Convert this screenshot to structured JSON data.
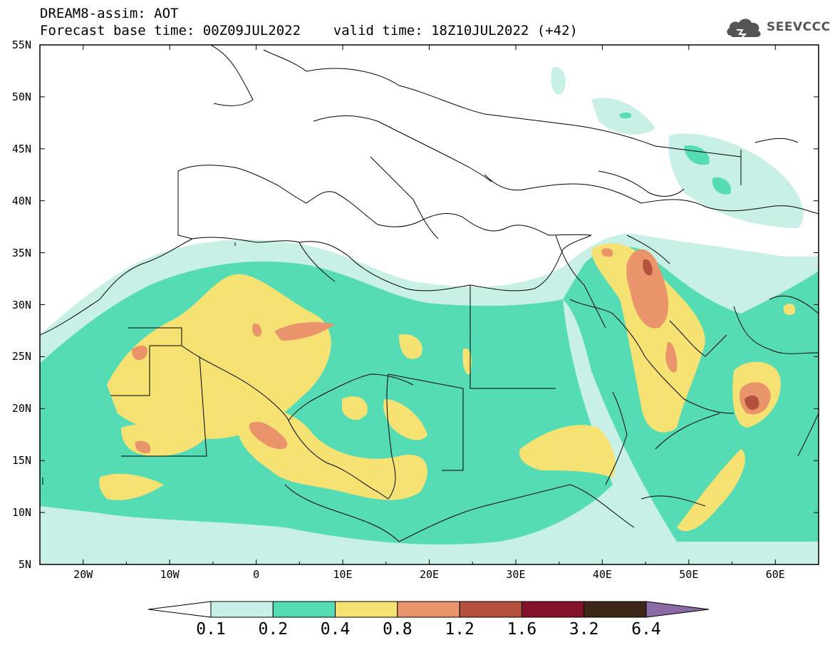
{
  "title": {
    "line1": "DREAM8-assim: AOT",
    "line2": "Forecast base time: 00Z09JUL2022    valid time: 18Z10JUL2022 (+42)"
  },
  "logo": {
    "text": "SEEVCCC",
    "icon": "cloud-logo-icon"
  },
  "map": {
    "lon_range": [
      -25,
      65
    ],
    "lat_range": [
      5,
      55
    ],
    "lat_ticks": [
      "55N",
      "50N",
      "45N",
      "40N",
      "35N",
      "30N",
      "25N",
      "20N",
      "15N",
      "10N",
      "5N"
    ],
    "lon_ticks": [
      "20W",
      "10W",
      "0",
      "10E",
      "20E",
      "30E",
      "40E",
      "50E",
      "60E"
    ]
  },
  "colorbar": {
    "labels": [
      "0.1",
      "0.2",
      "0.4",
      "0.8",
      "1.2",
      "1.6",
      "3.2",
      "6.4"
    ],
    "colors": [
      "#ffffff",
      "#c8f0e6",
      "#55dcb4",
      "#f5e273",
      "#e9946a",
      "#b3513e",
      "#84122a",
      "#3d2617",
      "#8c6aa6"
    ]
  }
}
